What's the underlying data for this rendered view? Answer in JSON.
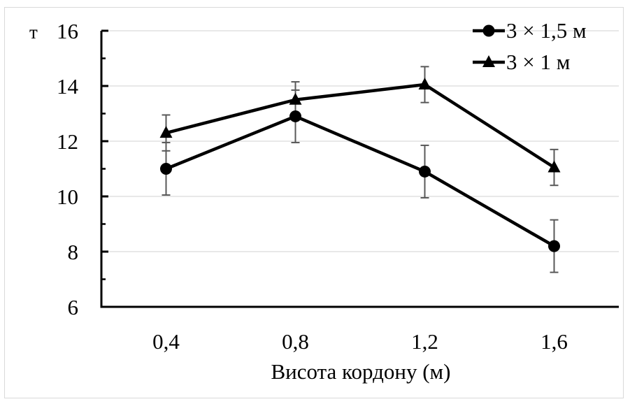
{
  "chart_data": {
    "type": "line",
    "title": "",
    "xlabel": "Висота кордону (м)",
    "ylabel": "т",
    "categories": [
      "0,4",
      "0,8",
      "1,2",
      "1,6"
    ],
    "ylim": [
      6,
      16
    ],
    "yticks": [
      "6",
      "8",
      "10",
      "12",
      "14",
      "16"
    ],
    "grid": true,
    "legend_position": "top-right",
    "series": [
      {
        "name": "3 × 1,5 м",
        "marker": "circle",
        "color": "#000000",
        "values": [
          11.0,
          12.9,
          10.9,
          8.2
        ],
        "errors": [
          0.95,
          0.95,
          0.95,
          0.95
        ]
      },
      {
        "name": "3 × 1 м",
        "marker": "triangle",
        "color": "#000000",
        "values": [
          12.3,
          13.5,
          14.05,
          11.05
        ],
        "errors": [
          0.65,
          0.65,
          0.65,
          0.65
        ]
      }
    ]
  }
}
